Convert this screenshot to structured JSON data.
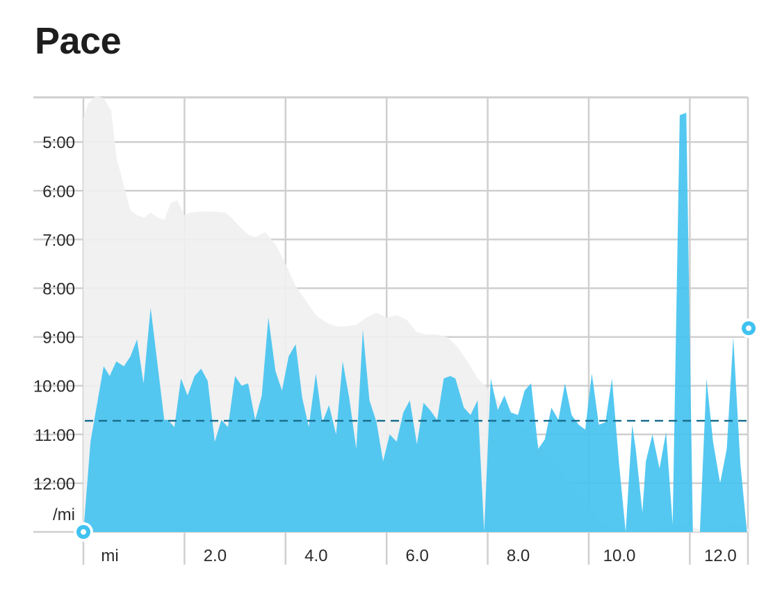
{
  "page": {
    "title": "Pace"
  },
  "chart_data": {
    "type": "area",
    "title": "Pace",
    "ylabel": "/mi",
    "xlabel": "mi",
    "x_ticks": [
      "mi",
      "2.0",
      "4.0",
      "6.0",
      "8.0",
      "10.0",
      "12.0"
    ],
    "x_tick_values": [
      0,
      2,
      4,
      6,
      8,
      10,
      12
    ],
    "y_ticks": [
      "5:00",
      "6:00",
      "7:00",
      "8:00",
      "9:00",
      "10:00",
      "11:00",
      "12:00"
    ],
    "y_tick_values": [
      5,
      6,
      7,
      8,
      9,
      10,
      11,
      12
    ],
    "xlim": [
      0,
      13.2
    ],
    "ylim_inverted": [
      13.0,
      4.05
    ],
    "average_pace": 10.72,
    "colors": {
      "pace": "#45c3f0",
      "pace_overlap": "#44bfe8",
      "elevation": "#efefef",
      "average": "#1a6f8e",
      "grid": "#cfcfcf"
    },
    "series": [
      {
        "role": "pace",
        "x": [
          0,
          0.14,
          0.4,
          0.52,
          0.65,
          0.8,
          0.93,
          1.06,
          1.19,
          1.33,
          1.6,
          1.67,
          1.8,
          1.93,
          2.06,
          2.2,
          2.33,
          2.46,
          2.6,
          2.73,
          2.86,
          3.0,
          3.13,
          3.26,
          3.4,
          3.53,
          3.66,
          3.8,
          3.93,
          4.06,
          4.2,
          4.33,
          4.46,
          4.6,
          4.73,
          4.86,
          5.0,
          5.13,
          5.26,
          5.4,
          5.53,
          5.66,
          5.8,
          5.93,
          6.06,
          6.2,
          6.33,
          6.46,
          6.6,
          6.73,
          6.86,
          7.0,
          7.13,
          7.26,
          7.36,
          7.53,
          7.66,
          7.8,
          7.93,
          8.06,
          8.2,
          8.33,
          8.46,
          8.6,
          8.73,
          8.86,
          9.0,
          9.13,
          9.26,
          9.4,
          9.53,
          9.66,
          9.8,
          9.93,
          10.06,
          10.2,
          10.33,
          10.46,
          10.6,
          10.73,
          10.86,
          10.93,
          11.06,
          11.13,
          11.26,
          11.4,
          11.53,
          11.66,
          11.8,
          11.93,
          12.06,
          12.2,
          12.33,
          12.46,
          12.6,
          12.73,
          12.86,
          13.0,
          13.13,
          13.2
        ],
        "y": [
          13.0,
          11.15,
          9.6,
          9.8,
          9.5,
          9.6,
          9.4,
          9.05,
          9.95,
          8.4,
          10.7,
          10.7,
          10.85,
          9.85,
          10.2,
          9.8,
          9.65,
          9.9,
          11.15,
          10.7,
          10.85,
          9.8,
          10.0,
          9.95,
          10.7,
          10.2,
          8.6,
          9.7,
          10.1,
          9.4,
          9.15,
          10.25,
          10.85,
          9.75,
          10.75,
          10.4,
          11.0,
          9.5,
          10.25,
          11.3,
          8.85,
          10.3,
          10.75,
          11.55,
          11.0,
          11.15,
          10.55,
          10.3,
          11.2,
          10.35,
          10.5,
          10.7,
          9.85,
          9.8,
          9.85,
          10.45,
          10.6,
          10.3,
          13.0,
          9.85,
          10.5,
          10.2,
          10.55,
          10.6,
          10.1,
          9.95,
          11.3,
          11.1,
          10.45,
          10.7,
          9.95,
          10.6,
          10.8,
          10.9,
          9.75,
          10.8,
          10.75,
          9.85,
          11.6,
          13.0,
          10.8,
          11.3,
          12.6,
          11.55,
          11.0,
          11.7,
          10.95,
          12.85,
          4.45,
          4.4,
          13.0,
          13.0,
          9.85,
          11.15,
          12.0,
          11.3,
          9.0,
          11.6,
          13.0,
          13.0
        ]
      },
      {
        "role": "elevation",
        "x": [
          0,
          0.1,
          0.25,
          0.4,
          0.55,
          0.65,
          0.8,
          0.93,
          1.06,
          1.2,
          1.33,
          1.47,
          1.6,
          1.73,
          1.86,
          2.0,
          2.13,
          2.3,
          2.6,
          2.8,
          2.93,
          3.06,
          3.26,
          3.4,
          3.6,
          3.8,
          4.0,
          4.2,
          4.4,
          4.6,
          4.8,
          5.0,
          5.2,
          5.4,
          5.6,
          5.8,
          6.0,
          6.2,
          6.4,
          6.6,
          6.8,
          7.0,
          7.2,
          7.4,
          7.6,
          7.8,
          8.0,
          8.2,
          8.4,
          8.6,
          8.8,
          9.0,
          9.2,
          9.4,
          9.6,
          9.8,
          10.0,
          10.2,
          10.4,
          10.6,
          10.8,
          11.0,
          11.2,
          11.4,
          11.6,
          11.8,
          12.0,
          12.2,
          12.4,
          12.6,
          12.8,
          12.95,
          13.05,
          13.2
        ],
        "y": [
          4.5,
          4.2,
          4.05,
          4.1,
          4.35,
          5.3,
          5.9,
          6.4,
          6.5,
          6.55,
          6.45,
          6.55,
          6.6,
          6.25,
          6.2,
          6.5,
          6.45,
          6.43,
          6.43,
          6.45,
          6.55,
          6.7,
          6.9,
          6.95,
          6.85,
          7.1,
          7.5,
          7.95,
          8.25,
          8.55,
          8.7,
          8.78,
          8.78,
          8.75,
          8.6,
          8.5,
          8.6,
          8.55,
          8.65,
          8.9,
          8.95,
          8.95,
          9.0,
          9.2,
          9.5,
          9.85,
          10.05,
          10.3,
          10.55,
          10.75,
          10.9,
          11.2,
          11.45,
          11.7,
          11.95,
          12.2,
          12.5,
          12.75,
          12.9,
          12.95,
          12.97,
          13.0,
          12.98,
          12.95,
          12.9,
          12.85,
          12.88,
          12.95,
          12.95,
          12.92,
          12.78,
          12.85,
          12.9,
          12.95
        ]
      }
    ]
  }
}
